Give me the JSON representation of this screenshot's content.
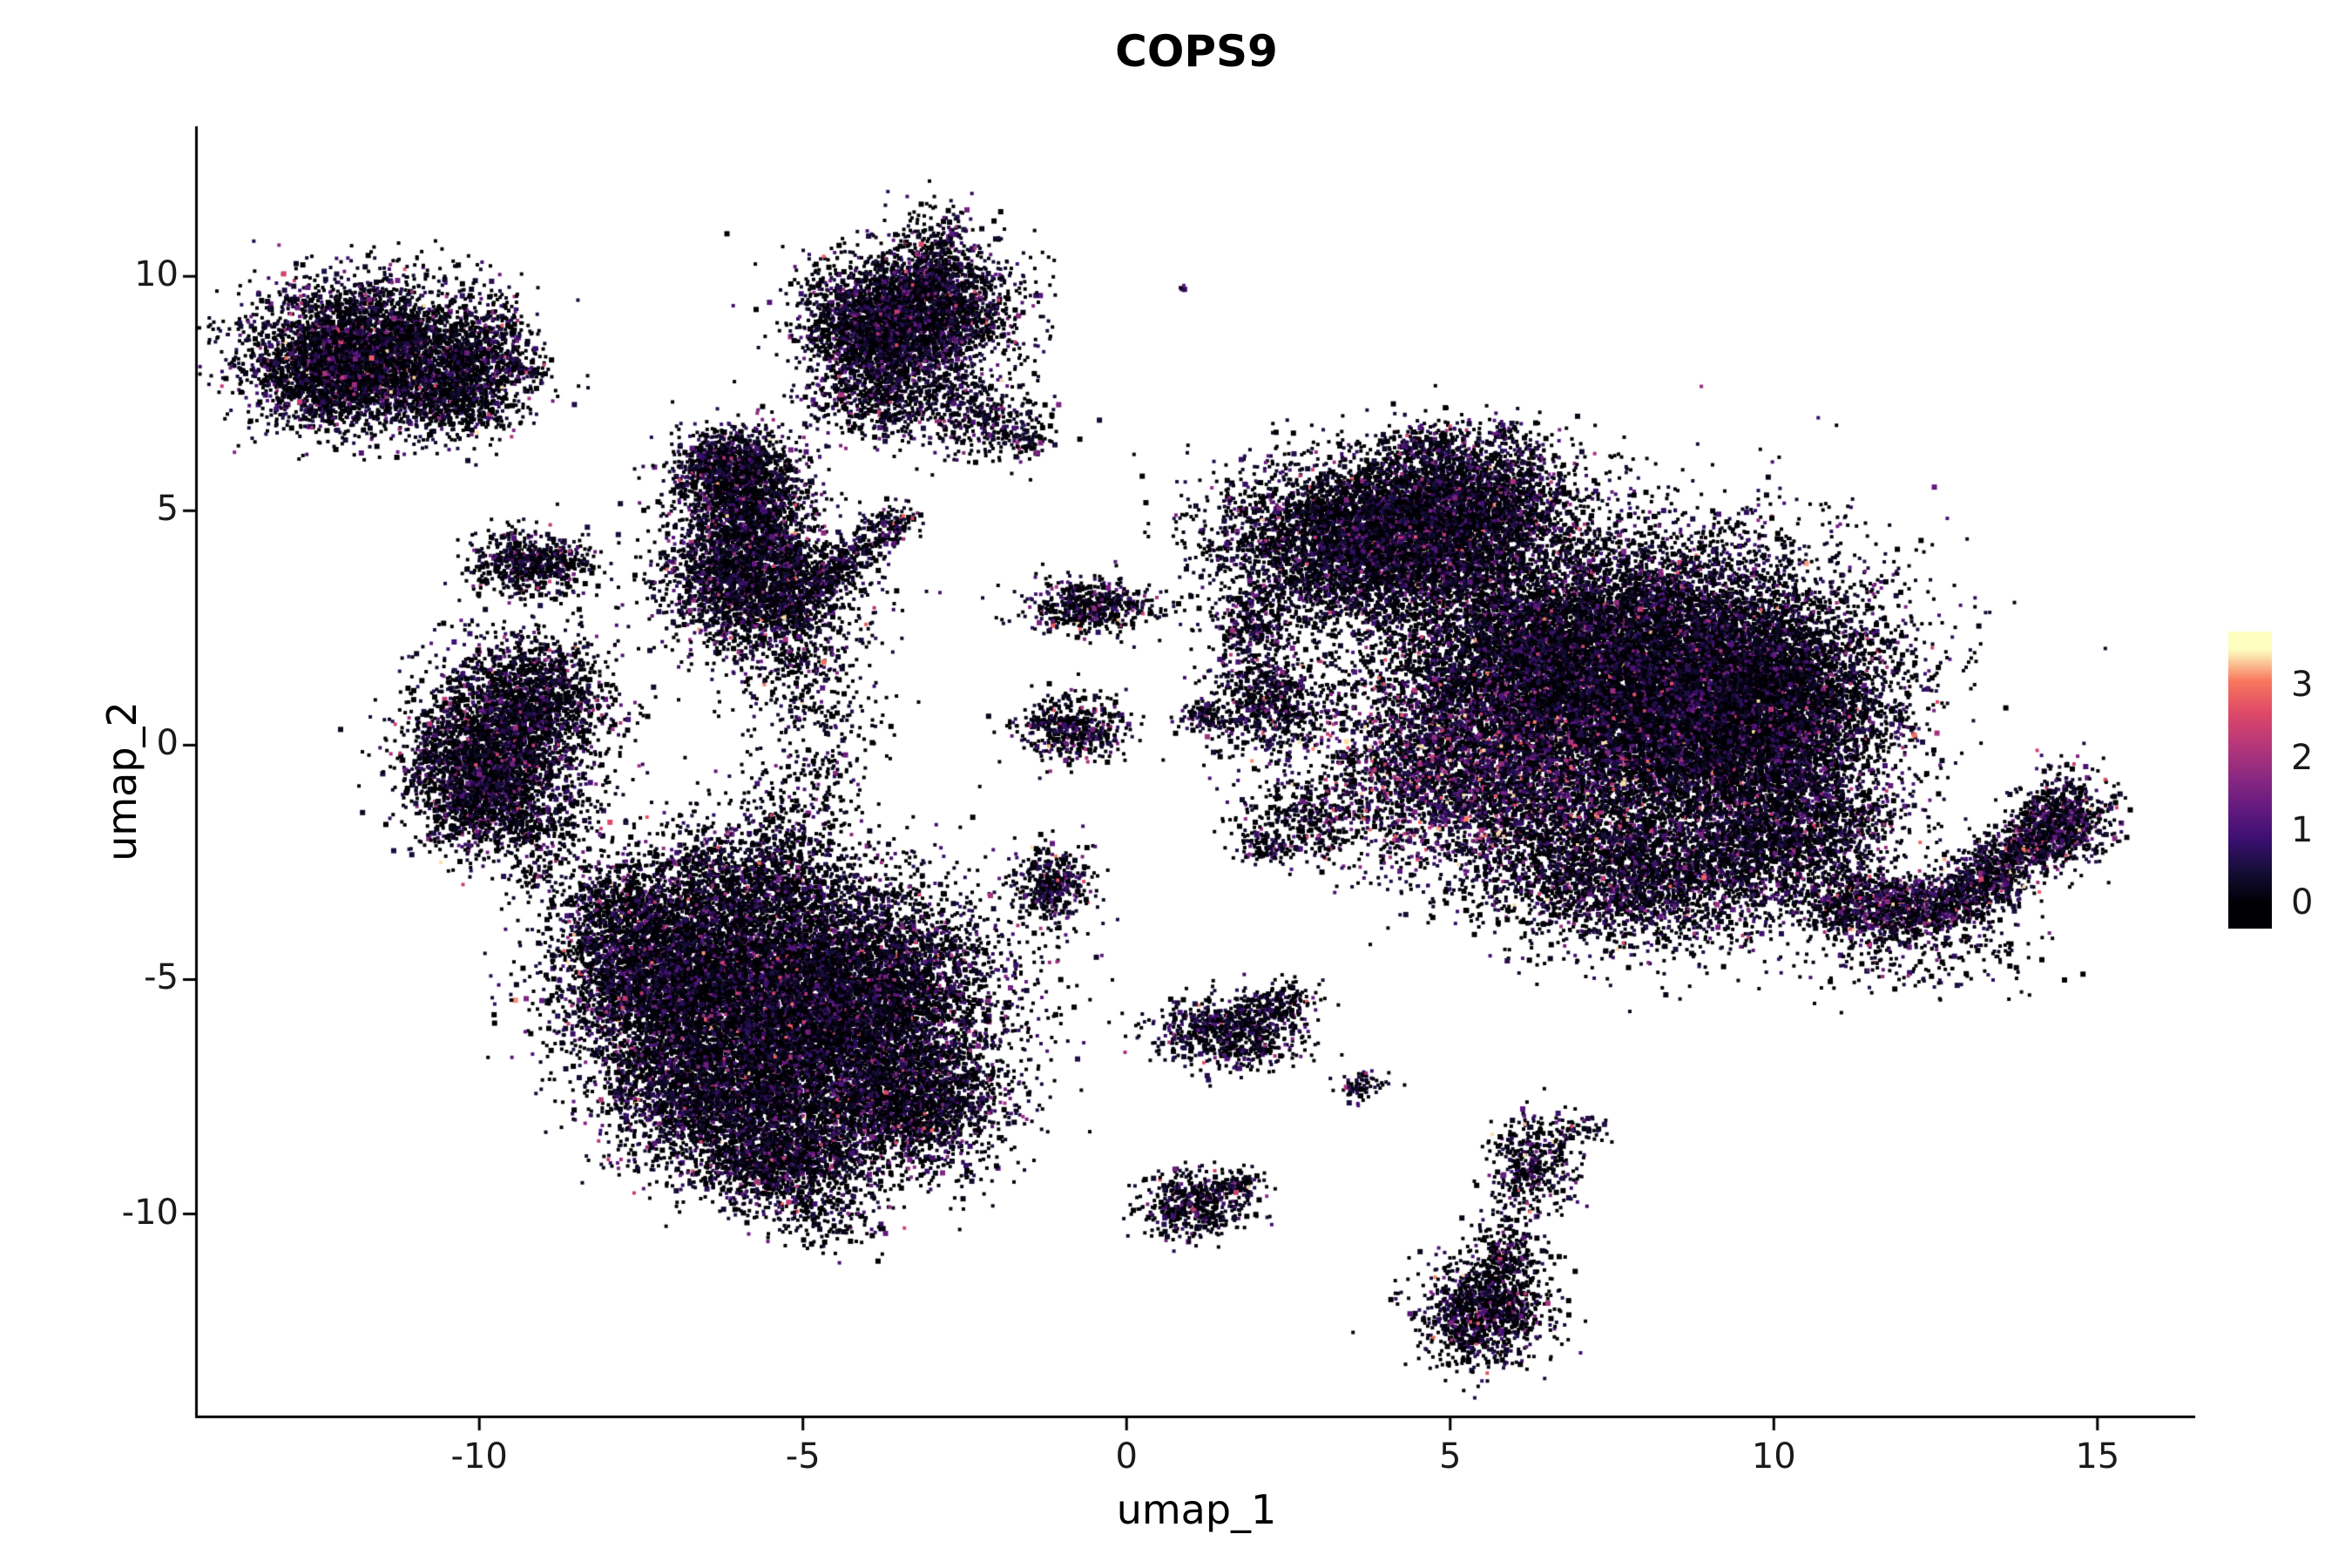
{
  "title": "COPS9",
  "chart_data": {
    "type": "scatter",
    "subtype": "umap-feature-plot",
    "title": "COPS9",
    "xlabel": "umap_1",
    "ylabel": "umap_2",
    "x_ticks": [
      -10,
      -5,
      0,
      5,
      10,
      15
    ],
    "x_tick_labels": [
      "-10",
      "-5",
      "0",
      "5",
      "10",
      "15"
    ],
    "y_ticks": [
      10,
      5,
      0,
      -5,
      -10
    ],
    "y_tick_labels": [
      "10",
      "5",
      "0",
      "-5",
      "-10"
    ],
    "x_range": [
      -14.35,
      16.51
    ],
    "y_range": [
      -14.3,
      13.2
    ],
    "grid": false,
    "legend_position": "right",
    "colorbar": {
      "ticks": [
        "3",
        "2",
        "1",
        "0"
      ],
      "tick_values": [
        3,
        2,
        1,
        0
      ],
      "value_range": [
        0,
        3.5
      ],
      "bar_range": [
        -0.35,
        3.75
      ]
    },
    "colormap": {
      "name": "magma",
      "anchors": [
        [
          0,
          "#000004"
        ],
        [
          0.125,
          "#140e36"
        ],
        [
          0.25,
          "#3b0f70"
        ],
        [
          0.375,
          "#641a80"
        ],
        [
          0.5,
          "#8c2981"
        ],
        [
          0.625,
          "#b73779"
        ],
        [
          0.75,
          "#de4968"
        ],
        [
          0.875,
          "#f8765c"
        ],
        [
          1,
          "#fcfdbf"
        ]
      ]
    },
    "point_color_zero": "#000004",
    "clusters": [
      {
        "cx": -11.7,
        "cy": 8.4,
        "sx": 0.95,
        "sy": 0.75,
        "n": 3800
      },
      {
        "cx": -10.4,
        "cy": 7.5,
        "sx": 0.55,
        "sy": 0.5,
        "n": 800
      },
      {
        "cx": -12.3,
        "cy": 7.8,
        "sx": 0.5,
        "sy": 0.5,
        "n": 900
      },
      {
        "cx": -9.9,
        "cy": 8.4,
        "sx": 0.4,
        "sy": 0.5,
        "n": 400,
        "p0": 0.5
      },
      {
        "type": "line",
        "x1": -9.6,
        "y1": 8.1,
        "x2": -9.0,
        "y2": 7.9,
        "jitter": 0.1,
        "n": 60
      },
      {
        "cx": -3.3,
        "cy": 9.3,
        "sx": 0.75,
        "sy": 0.65,
        "n": 3200
      },
      {
        "cx": -3.9,
        "cy": 8.6,
        "sx": 0.5,
        "sy": 0.5,
        "n": 900
      },
      {
        "cx": -2.9,
        "cy": 10.6,
        "sx": 0.3,
        "sy": 0.55,
        "n": 220,
        "p0": 0.5
      },
      {
        "cx": -3.6,
        "cy": 7.4,
        "sx": 0.7,
        "sy": 0.45,
        "n": 700
      },
      {
        "cx": -2.2,
        "cy": 6.9,
        "sx": 0.5,
        "sy": 0.45,
        "n": 250,
        "p0": 0.5
      },
      {
        "type": "line",
        "x1": -2.6,
        "y1": 7.4,
        "x2": -1.2,
        "y2": 6.3,
        "jitter": 0.2,
        "n": 150
      },
      {
        "cx": -5.9,
        "cy": 5.0,
        "sx": 0.5,
        "sy": 0.8,
        "n": 1800
      },
      {
        "cx": -6.1,
        "cy": 5.9,
        "sx": 0.45,
        "sy": 0.4,
        "n": 700
      },
      {
        "cx": -5.7,
        "cy": 3.4,
        "sx": 0.75,
        "sy": 0.65,
        "n": 2200
      },
      {
        "type": "line",
        "x1": -5.0,
        "y1": 3.3,
        "x2": -3.4,
        "y2": 4.9,
        "jitter": 0.18,
        "n": 420
      },
      {
        "cx": -5.3,
        "cy": 2.0,
        "sx": 0.6,
        "sy": 0.8,
        "n": 380,
        "p0": 0.5
      },
      {
        "cx": -4.7,
        "cy": 0.5,
        "sx": 0.5,
        "sy": 1.0,
        "n": 200,
        "p0": 0.5
      },
      {
        "cx": -9.2,
        "cy": 3.85,
        "sx": 0.45,
        "sy": 0.32,
        "n": 650
      },
      {
        "cx": -9.6,
        "cy": 0.1,
        "sx": 0.7,
        "sy": 1.0,
        "n": 2800
      },
      {
        "cx": -10.1,
        "cy": -0.8,
        "sx": 0.5,
        "sy": 0.6,
        "n": 900
      },
      {
        "cx": -9.0,
        "cy": 1.2,
        "sx": 0.5,
        "sy": 0.6,
        "n": 700
      },
      {
        "cx": -9.4,
        "cy": -1.7,
        "sx": 0.6,
        "sy": 0.4,
        "n": 400,
        "p0": 0.5
      },
      {
        "cx": -4.6,
        "cy": -5.4,
        "sx": 1.25,
        "sy": 1.2,
        "n": 9000
      },
      {
        "cx": -7.1,
        "cy": -5.0,
        "sx": 0.85,
        "sy": 0.9,
        "n": 3800
      },
      {
        "cx": -6.3,
        "cy": -7.4,
        "sx": 0.9,
        "sy": 0.8,
        "n": 3200
      },
      {
        "cx": -5.3,
        "cy": -8.9,
        "sx": 0.7,
        "sy": 0.5,
        "n": 1300
      },
      {
        "cx": -3.4,
        "cy": -7.6,
        "sx": 0.8,
        "sy": 0.7,
        "n": 2200
      },
      {
        "cx": -6.2,
        "cy": -3.2,
        "sx": 1.0,
        "sy": 0.8,
        "n": 1600,
        "p0": 0.5
      },
      {
        "cx": -7.9,
        "cy": -3.6,
        "sx": 0.5,
        "sy": 0.5,
        "n": 500,
        "p0": 0.5
      },
      {
        "cx": -5.2,
        "cy": -1.8,
        "sx": 0.5,
        "sy": 0.9,
        "n": 350,
        "p0": 0.55
      },
      {
        "cx": -4.6,
        "cy": -10.1,
        "sx": 0.45,
        "sy": 0.35,
        "n": 160,
        "p0": 0.5
      },
      {
        "cx": -9.1,
        "cy": -2.8,
        "sx": 0.15,
        "sy": 0.12,
        "n": 45
      },
      {
        "cx": -0.55,
        "cy": 2.95,
        "sx": 0.5,
        "sy": 0.28,
        "n": 550
      },
      {
        "cx": -0.8,
        "cy": 0.35,
        "sx": 0.42,
        "sy": 0.38,
        "n": 420,
        "p0": 0.5
      },
      {
        "type": "line",
        "x1": -1.6,
        "y1": 0.6,
        "x2": -0.3,
        "y2": 0.2,
        "jitter": 0.12,
        "n": 80
      },
      {
        "cx": -1.15,
        "cy": -3.0,
        "sx": 0.3,
        "sy": 0.42,
        "n": 380
      },
      {
        "cx": 3.9,
        "cy": 4.4,
        "sx": 1.15,
        "sy": 0.85,
        "n": 6000
      },
      {
        "cx": 5.3,
        "cy": 5.3,
        "sx": 0.8,
        "sy": 0.7,
        "n": 2000
      },
      {
        "cx": 8.4,
        "cy": 1.3,
        "sx": 1.55,
        "sy": 1.5,
        "n": 13000
      },
      {
        "cx": 9.7,
        "cy": 0.6,
        "sx": 1.0,
        "sy": 1.0,
        "n": 4000
      },
      {
        "cx": 6.0,
        "cy": 2.0,
        "sx": 1.2,
        "sy": 1.4,
        "n": 5000
      },
      {
        "cx": 5.3,
        "cy": -0.7,
        "sx": 1.2,
        "sy": 1.0,
        "n": 3200,
        "hot": 0.85,
        "p0": 0.3
      },
      {
        "cx": 7.9,
        "cy": -2.7,
        "sx": 1.3,
        "sy": 0.8,
        "n": 3200
      },
      {
        "cx": 10.3,
        "cy": -1.8,
        "sx": 0.8,
        "sy": 0.8,
        "n": 1800
      },
      {
        "type": "line",
        "x1": 10.9,
        "y1": -3.4,
        "x2": 12.8,
        "y2": -3.5,
        "jitter": 0.32,
        "n": 1100,
        "hot": 0.7,
        "p0": 0.35
      },
      {
        "type": "line",
        "x1": 12.8,
        "y1": -3.4,
        "x2": 14.6,
        "y2": -1.4,
        "jitter": 0.3,
        "n": 1300,
        "hot": 0.7,
        "p0": 0.35
      },
      {
        "cx": 14.5,
        "cy": -1.6,
        "sx": 0.4,
        "sy": 0.5,
        "n": 500,
        "hot": 0.7,
        "p0": 0.35
      },
      {
        "cx": 12.1,
        "cy": -4.3,
        "sx": 1.1,
        "sy": 0.5,
        "n": 300,
        "p0": 0.55
      },
      {
        "cx": 1.95,
        "cy": 2.6,
        "sx": 0.3,
        "sy": 0.4,
        "n": 320
      },
      {
        "cx": 2.2,
        "cy": 0.9,
        "sx": 0.5,
        "sy": 0.55,
        "n": 750
      },
      {
        "cx": 1.2,
        "cy": 0.6,
        "sx": 0.18,
        "sy": 0.15,
        "n": 90
      },
      {
        "cx": 2.8,
        "cy": -1.6,
        "sx": 0.5,
        "sy": 0.4,
        "n": 260,
        "p0": 0.5
      },
      {
        "cx": 2.2,
        "cy": -2.2,
        "sx": 0.25,
        "sy": 0.15,
        "n": 110
      },
      {
        "cx": 4.6,
        "cy": 6.4,
        "sx": 0.3,
        "sy": 0.2,
        "n": 120
      },
      {
        "cx": 5.9,
        "cy": 6.7,
        "sx": 0.15,
        "sy": 0.1,
        "n": 30
      },
      {
        "cx": 0.85,
        "cy": 9.75,
        "sx": 0.05,
        "sy": 0.05,
        "n": 6
      },
      {
        "cx": 1.6,
        "cy": -6.1,
        "sx": 0.55,
        "sy": 0.38,
        "n": 750
      },
      {
        "cx": 2.4,
        "cy": -5.5,
        "sx": 0.3,
        "sy": 0.25,
        "n": 150,
        "p0": 0.5
      },
      {
        "cx": 3.6,
        "cy": -7.3,
        "sx": 0.2,
        "sy": 0.15,
        "n": 70
      },
      {
        "cx": 1.05,
        "cy": -9.8,
        "sx": 0.4,
        "sy": 0.33,
        "n": 480
      },
      {
        "cx": 1.75,
        "cy": -9.35,
        "sx": 0.2,
        "sy": 0.15,
        "n": 80,
        "p0": 0.5
      },
      {
        "cx": 5.5,
        "cy": -12.1,
        "sx": 0.5,
        "sy": 0.55,
        "n": 1100
      },
      {
        "cx": 5.9,
        "cy": -10.9,
        "sx": 0.3,
        "sy": 0.5,
        "n": 260,
        "p0": 0.5
      },
      {
        "cx": 6.3,
        "cy": -8.9,
        "sx": 0.35,
        "sy": 0.5,
        "n": 420
      },
      {
        "cx": 7.0,
        "cy": -8.2,
        "sx": 0.2,
        "sy": 0.15,
        "n": 50,
        "p0": 0.5
      }
    ]
  }
}
